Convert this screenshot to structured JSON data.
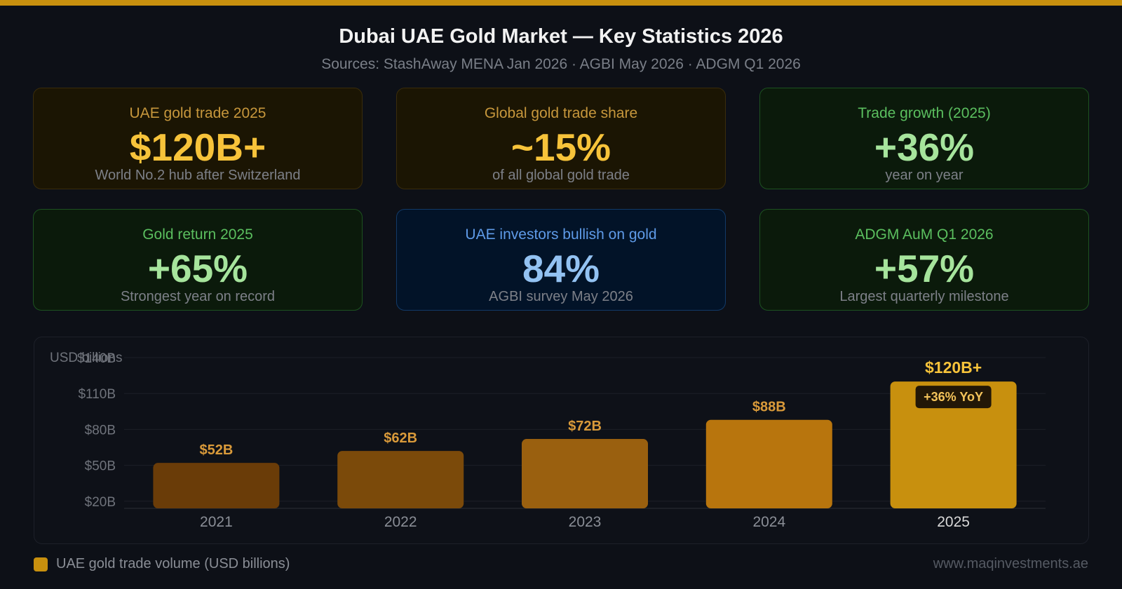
{
  "header": {
    "title": "Dubai UAE Gold Market — Key Statistics 2026",
    "subtitle": "Sources: StashAway MENA Jan 2026 · AGBI May 2026 · ADGM Q1 2026"
  },
  "cards": [
    {
      "label": "UAE gold trade 2025",
      "value": "$120B+",
      "note": "World No.2 hub after Switzerland",
      "theme": "gold"
    },
    {
      "label": "Global gold trade share",
      "value": "~15%",
      "note": "of all global gold trade",
      "theme": "gold"
    },
    {
      "label": "Trade growth (2025)",
      "value": "+36%",
      "note": "year on year",
      "theme": "green"
    },
    {
      "label": "Gold return 2025",
      "value": "+65%",
      "note": "Strongest year on record",
      "theme": "green"
    },
    {
      "label": "UAE investors bullish on gold",
      "value": "84%",
      "note": "AGBI survey May 2026",
      "theme": "blue"
    },
    {
      "label": "ADGM AuM Q1 2026",
      "value": "+57%",
      "note": "Largest quarterly milestone",
      "theme": "green"
    }
  ],
  "chart_data": {
    "type": "bar",
    "ylabel": "USD billions",
    "categories": [
      "2021",
      "2022",
      "2023",
      "2024",
      "2025"
    ],
    "series": [
      {
        "name": "UAE gold trade volume (USD billions)",
        "values": [
          52,
          62,
          72,
          88,
          120
        ]
      }
    ],
    "data_labels": [
      "$52B",
      "$62B",
      "$72B",
      "$88B",
      "$120B+"
    ],
    "yticks": [
      20,
      50,
      80,
      110,
      140
    ],
    "ytick_labels": [
      "$20B",
      "$50B",
      "$80B",
      "$110B",
      "$140B"
    ],
    "ylim": [
      14,
      140
    ],
    "bar_colors": [
      "#6a3c08",
      "#7b4a0a",
      "#9a600f",
      "#b8750d",
      "#c8900e"
    ],
    "annotation": {
      "category": "2025",
      "text": "+36% YoY"
    },
    "grid": true
  },
  "legend": {
    "label": "UAE gold trade volume (USD billions)",
    "color": "#c8900e"
  },
  "footer": {
    "site": "www.maqinvestments.ae"
  }
}
